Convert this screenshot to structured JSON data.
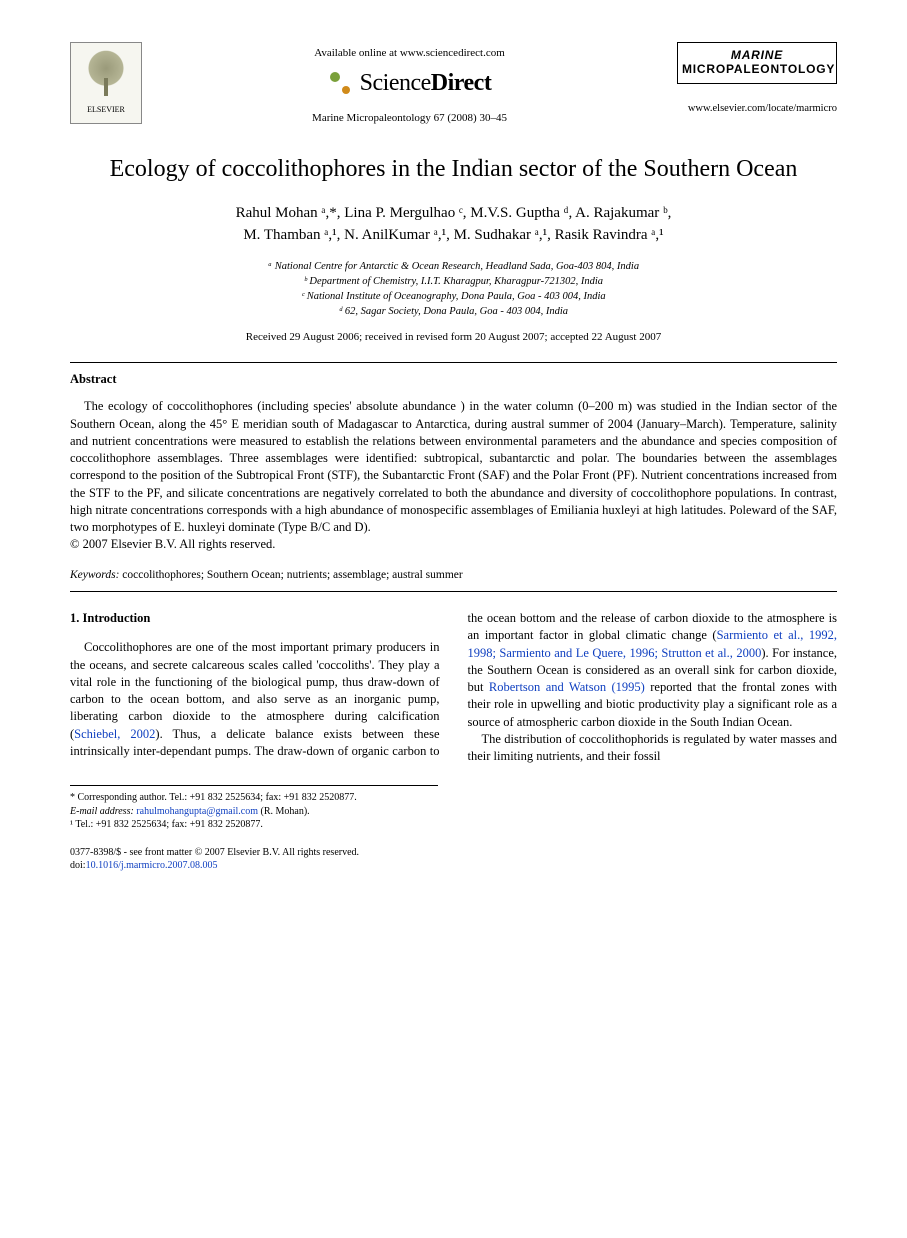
{
  "header": {
    "publisher_name": "ELSEVIER",
    "available_line": "Available online at www.sciencedirect.com",
    "sd_brand_1": "Science",
    "sd_brand_2": "Direct",
    "journal_ref": "Marine Micropaleontology 67 (2008) 30–45",
    "journal_brand_l1": "MARINE",
    "journal_brand_l2": "MICROPALEONTOLOGY",
    "locator_url": "www.elsevier.com/locate/marmicro"
  },
  "title": "Ecology of coccolithophores in the Indian sector of the Southern Ocean",
  "authors_line1": "Rahul Mohan ᵃ,*, Lina P. Mergulhao ᶜ, M.V.S. Guptha ᵈ, A. Rajakumar ᵇ,",
  "authors_line2": "M. Thamban ᵃ,¹, N. AnilKumar ᵃ,¹, M. Sudhakar ᵃ,¹, Rasik Ravindra ᵃ,¹",
  "affiliations": {
    "a": "ᵃ National Centre for Antarctic & Ocean Research, Headland Sada, Goa-403 804, India",
    "b": "ᵇ Department of Chemistry, I.I.T. Kharagpur, Kharagpur-721302, India",
    "c": "ᶜ National Institute of Oceanography, Dona Paula, Goa - 403 004, India",
    "d": "ᵈ 62, Sagar Society, Dona Paula, Goa - 403 004, India"
  },
  "dates": "Received 29 August 2006; received in revised form 20 August 2007; accepted 22 August 2007",
  "abstract_head": "Abstract",
  "abstract_body": "The ecology of coccolithophores (including species' absolute abundance ) in the water column (0–200 m) was studied in the Indian sector of the Southern Ocean, along the 45° E meridian south of Madagascar to Antarctica, during austral summer of 2004 (January–March). Temperature, salinity and nutrient concentrations were measured to establish the relations between environmental parameters and the abundance and species composition of coccolithophore assemblages. Three assemblages were identified: subtropical, subantarctic and polar. The boundaries between the assemblages correspond to the position of the Subtropical Front (STF), the Subantarctic Front (SAF) and the Polar Front (PF). Nutrient concentrations increased from the STF to the PF, and silicate concentrations are negatively correlated to both the abundance and diversity of coccolithophore populations. In contrast, high nitrate concentrations corresponds with a high abundance of monospecific assemblages of Emiliania huxleyi at high latitudes. Poleward of the SAF, two morphotypes of E. huxleyi dominate (Type B/C and D).",
  "copyright": "© 2007 Elsevier B.V. All rights reserved.",
  "keywords_label": "Keywords:",
  "keywords": "coccolithophores; Southern Ocean; nutrients; assemblage; austral summer",
  "section1_head": "1. Introduction",
  "para1a": "Coccolithophores are one of the most important primary producers in the oceans, and secrete calcareous scales called 'coccoliths'. They play a vital role in the functioning of the biological pump, thus draw-down of carbon to the ocean bottom, and also serve as an inorganic pump, liberating carbon dioxide to the atmosphere during calcification (",
  "ref1": "Schiebel, 2002",
  "para1b": "). Thus, a delicate balance exists between these intrinsically inter-dependant pumps. The draw-down of organic carbon to the ocean bottom and the release of carbon dioxide to the atmosphere is an important factor in global climatic change (",
  "ref2": "Sarmiento et al., 1992, 1998; Sarmiento and Le Quere, 1996; Strutton et al., 2000",
  "para1c": "). For instance, the Southern Ocean is considered as an overall sink for carbon dioxide, but ",
  "ref3": "Robertson and Watson (1995)",
  "para1d": " reported that the frontal zones with their role in upwelling and biotic productivity play a significant role as a source of atmospheric carbon dioxide in the South Indian Ocean.",
  "para2": "The distribution of coccolithophorids is regulated by water masses and their limiting nutrients, and their fossil",
  "footnotes": {
    "corr": "* Corresponding author. Tel.: +91 832 2525634; fax: +91 832 2520877.",
    "email_label": "E-mail address:",
    "email": "rahulmohangupta@gmail.com",
    "email_owner": "(R. Mohan).",
    "fn1": "¹ Tel.: +91 832 2525634; fax: +91 832 2520877."
  },
  "footer": {
    "issn": "0377-8398/$ - see front matter © 2007 Elsevier B.V. All rights reserved.",
    "doi_label": "doi:",
    "doi": "10.1016/j.marmicro.2007.08.005"
  },
  "colors": {
    "link": "#1040c0",
    "text": "#000000",
    "bg": "#ffffff"
  },
  "typography": {
    "base_family": "Times New Roman",
    "title_size_pt": 18,
    "author_size_pt": 11,
    "body_size_pt": 9.5,
    "affil_size_pt": 8,
    "footnote_size_pt": 7.5
  }
}
